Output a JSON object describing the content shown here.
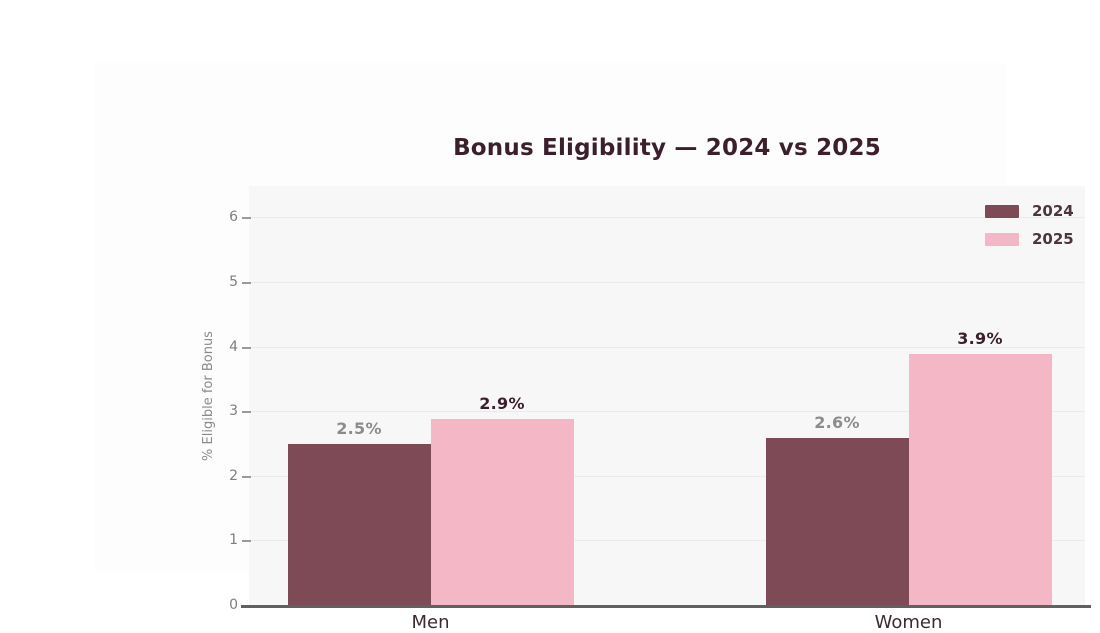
{
  "chart_data": {
    "type": "bar",
    "title": "Bonus Eligibility — 2024 vs 2025",
    "ylabel": "% Eligible for Bonus",
    "xlabel": "",
    "categories": [
      "Men",
      "Women"
    ],
    "series": [
      {
        "name": "2024",
        "values": [
          2.5,
          2.6
        ],
        "labels": [
          "2.5%",
          "2.6%"
        ],
        "color": "#7d4a56",
        "label_color": "#8c8c8c"
      },
      {
        "name": "2025",
        "values": [
          2.9,
          3.9
        ],
        "labels": [
          "2.9%",
          "3.9%"
        ],
        "color": "#f3b7c5",
        "label_color": "#3b1f2d"
      }
    ],
    "yticks": [
      0,
      1,
      2,
      3,
      4,
      5,
      6
    ],
    "ylim": [
      0,
      6.5
    ],
    "grid": true,
    "legend_position": "top-right",
    "legend_entries": [
      "2024",
      "2025"
    ],
    "colors": {
      "title": "#3b1f2d",
      "plot_background": "#f7f7f8",
      "card_background": "#fdfdfd",
      "gridline": "#ebebed",
      "axis_line": "#606060",
      "y_tick_text": "#7e7e7e",
      "x_tick_text": "#3c2a33",
      "legend_text": "#4b363f"
    }
  }
}
